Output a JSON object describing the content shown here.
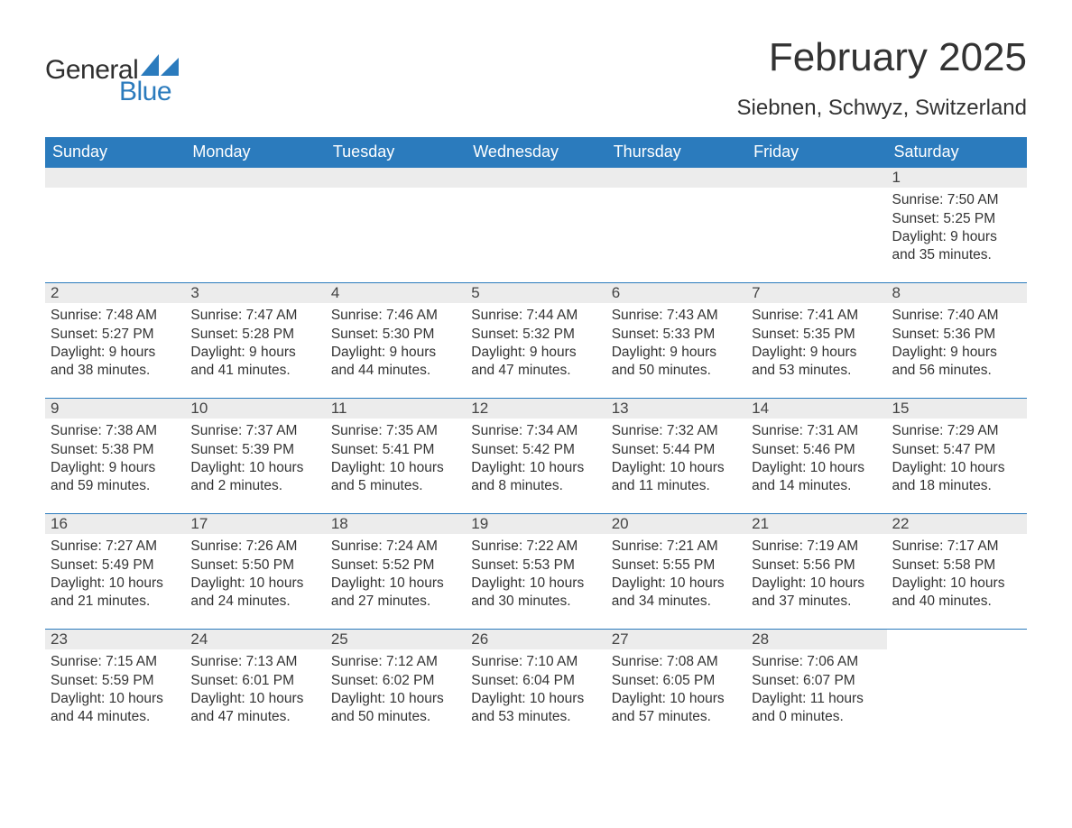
{
  "logo": {
    "text1": "General",
    "text2": "Blue",
    "sail_color": "#2b7bbd"
  },
  "title": "February 2025",
  "location": "Siebnen, Schwyz, Switzerland",
  "colors": {
    "header_bg": "#2b7bbd",
    "header_text": "#ffffff",
    "daynum_bg": "#ececec",
    "daynum_border": "#2b7bbd",
    "body_text": "#333333",
    "page_bg": "#ffffff"
  },
  "calendar": {
    "type": "table",
    "columns": [
      "Sunday",
      "Monday",
      "Tuesday",
      "Wednesday",
      "Thursday",
      "Friday",
      "Saturday"
    ],
    "weeks": [
      [
        null,
        null,
        null,
        null,
        null,
        null,
        {
          "n": "1",
          "sunrise": "Sunrise: 7:50 AM",
          "sunset": "Sunset: 5:25 PM",
          "daylight": "Daylight: 9 hours and 35 minutes."
        }
      ],
      [
        {
          "n": "2",
          "sunrise": "Sunrise: 7:48 AM",
          "sunset": "Sunset: 5:27 PM",
          "daylight": "Daylight: 9 hours and 38 minutes."
        },
        {
          "n": "3",
          "sunrise": "Sunrise: 7:47 AM",
          "sunset": "Sunset: 5:28 PM",
          "daylight": "Daylight: 9 hours and 41 minutes."
        },
        {
          "n": "4",
          "sunrise": "Sunrise: 7:46 AM",
          "sunset": "Sunset: 5:30 PM",
          "daylight": "Daylight: 9 hours and 44 minutes."
        },
        {
          "n": "5",
          "sunrise": "Sunrise: 7:44 AM",
          "sunset": "Sunset: 5:32 PM",
          "daylight": "Daylight: 9 hours and 47 minutes."
        },
        {
          "n": "6",
          "sunrise": "Sunrise: 7:43 AM",
          "sunset": "Sunset: 5:33 PM",
          "daylight": "Daylight: 9 hours and 50 minutes."
        },
        {
          "n": "7",
          "sunrise": "Sunrise: 7:41 AM",
          "sunset": "Sunset: 5:35 PM",
          "daylight": "Daylight: 9 hours and 53 minutes."
        },
        {
          "n": "8",
          "sunrise": "Sunrise: 7:40 AM",
          "sunset": "Sunset: 5:36 PM",
          "daylight": "Daylight: 9 hours and 56 minutes."
        }
      ],
      [
        {
          "n": "9",
          "sunrise": "Sunrise: 7:38 AM",
          "sunset": "Sunset: 5:38 PM",
          "daylight": "Daylight: 9 hours and 59 minutes."
        },
        {
          "n": "10",
          "sunrise": "Sunrise: 7:37 AM",
          "sunset": "Sunset: 5:39 PM",
          "daylight": "Daylight: 10 hours and 2 minutes."
        },
        {
          "n": "11",
          "sunrise": "Sunrise: 7:35 AM",
          "sunset": "Sunset: 5:41 PM",
          "daylight": "Daylight: 10 hours and 5 minutes."
        },
        {
          "n": "12",
          "sunrise": "Sunrise: 7:34 AM",
          "sunset": "Sunset: 5:42 PM",
          "daylight": "Daylight: 10 hours and 8 minutes."
        },
        {
          "n": "13",
          "sunrise": "Sunrise: 7:32 AM",
          "sunset": "Sunset: 5:44 PM",
          "daylight": "Daylight: 10 hours and 11 minutes."
        },
        {
          "n": "14",
          "sunrise": "Sunrise: 7:31 AM",
          "sunset": "Sunset: 5:46 PM",
          "daylight": "Daylight: 10 hours and 14 minutes."
        },
        {
          "n": "15",
          "sunrise": "Sunrise: 7:29 AM",
          "sunset": "Sunset: 5:47 PM",
          "daylight": "Daylight: 10 hours and 18 minutes."
        }
      ],
      [
        {
          "n": "16",
          "sunrise": "Sunrise: 7:27 AM",
          "sunset": "Sunset: 5:49 PM",
          "daylight": "Daylight: 10 hours and 21 minutes."
        },
        {
          "n": "17",
          "sunrise": "Sunrise: 7:26 AM",
          "sunset": "Sunset: 5:50 PM",
          "daylight": "Daylight: 10 hours and 24 minutes."
        },
        {
          "n": "18",
          "sunrise": "Sunrise: 7:24 AM",
          "sunset": "Sunset: 5:52 PM",
          "daylight": "Daylight: 10 hours and 27 minutes."
        },
        {
          "n": "19",
          "sunrise": "Sunrise: 7:22 AM",
          "sunset": "Sunset: 5:53 PM",
          "daylight": "Daylight: 10 hours and 30 minutes."
        },
        {
          "n": "20",
          "sunrise": "Sunrise: 7:21 AM",
          "sunset": "Sunset: 5:55 PM",
          "daylight": "Daylight: 10 hours and 34 minutes."
        },
        {
          "n": "21",
          "sunrise": "Sunrise: 7:19 AM",
          "sunset": "Sunset: 5:56 PM",
          "daylight": "Daylight: 10 hours and 37 minutes."
        },
        {
          "n": "22",
          "sunrise": "Sunrise: 7:17 AM",
          "sunset": "Sunset: 5:58 PM",
          "daylight": "Daylight: 10 hours and 40 minutes."
        }
      ],
      [
        {
          "n": "23",
          "sunrise": "Sunrise: 7:15 AM",
          "sunset": "Sunset: 5:59 PM",
          "daylight": "Daylight: 10 hours and 44 minutes."
        },
        {
          "n": "24",
          "sunrise": "Sunrise: 7:13 AM",
          "sunset": "Sunset: 6:01 PM",
          "daylight": "Daylight: 10 hours and 47 minutes."
        },
        {
          "n": "25",
          "sunrise": "Sunrise: 7:12 AM",
          "sunset": "Sunset: 6:02 PM",
          "daylight": "Daylight: 10 hours and 50 minutes."
        },
        {
          "n": "26",
          "sunrise": "Sunrise: 7:10 AM",
          "sunset": "Sunset: 6:04 PM",
          "daylight": "Daylight: 10 hours and 53 minutes."
        },
        {
          "n": "27",
          "sunrise": "Sunrise: 7:08 AM",
          "sunset": "Sunset: 6:05 PM",
          "daylight": "Daylight: 10 hours and 57 minutes."
        },
        {
          "n": "28",
          "sunrise": "Sunrise: 7:06 AM",
          "sunset": "Sunset: 6:07 PM",
          "daylight": "Daylight: 11 hours and 0 minutes."
        },
        null
      ]
    ]
  }
}
